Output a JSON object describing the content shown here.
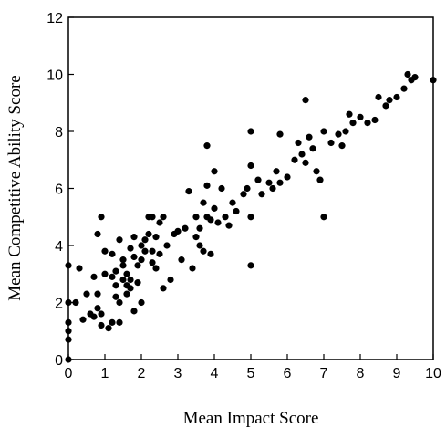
{
  "chart_data": {
    "type": "scatter",
    "xlabel": "Mean Impact Score",
    "ylabel": "Mean Competitive Ability Score",
    "xlim": [
      0,
      10
    ],
    "ylim": [
      0,
      12
    ],
    "xticks": [
      "0",
      "1",
      "2",
      "3",
      "4",
      "5",
      "6",
      "7",
      "8",
      "9",
      "10"
    ],
    "yticks": [
      "0",
      "2",
      "4",
      "6",
      "8",
      "10",
      "12"
    ],
    "grid": false,
    "marker_color": "#000000",
    "points": [
      [
        0.0,
        0.0
      ],
      [
        0.0,
        0.7
      ],
      [
        0.0,
        1.0
      ],
      [
        0.0,
        1.3
      ],
      [
        0.0,
        2.0
      ],
      [
        0.0,
        3.3
      ],
      [
        0.2,
        2.0
      ],
      [
        0.3,
        3.2
      ],
      [
        0.4,
        1.4
      ],
      [
        0.5,
        2.3
      ],
      [
        0.6,
        1.6
      ],
      [
        0.7,
        1.5
      ],
      [
        0.7,
        2.9
      ],
      [
        0.8,
        2.3
      ],
      [
        0.8,
        1.8
      ],
      [
        0.9,
        1.6
      ],
      [
        0.9,
        1.2
      ],
      [
        0.8,
        4.4
      ],
      [
        0.9,
        5.0
      ],
      [
        1.0,
        3.8
      ],
      [
        1.0,
        3.0
      ],
      [
        1.1,
        1.1
      ],
      [
        1.2,
        1.3
      ],
      [
        1.2,
        2.9
      ],
      [
        1.2,
        3.7
      ],
      [
        1.3,
        3.1
      ],
      [
        1.3,
        2.6
      ],
      [
        1.3,
        2.2
      ],
      [
        1.4,
        2.0
      ],
      [
        1.4,
        1.3
      ],
      [
        1.4,
        4.2
      ],
      [
        1.5,
        3.5
      ],
      [
        1.5,
        2.8
      ],
      [
        1.5,
        3.3
      ],
      [
        1.6,
        2.6
      ],
      [
        1.6,
        2.3
      ],
      [
        1.6,
        3.0
      ],
      [
        1.7,
        3.9
      ],
      [
        1.7,
        2.8
      ],
      [
        1.7,
        2.5
      ],
      [
        1.8,
        4.3
      ],
      [
        1.8,
        3.6
      ],
      [
        1.8,
        1.7
      ],
      [
        1.9,
        3.3
      ],
      [
        1.9,
        2.7
      ],
      [
        2.0,
        4.0
      ],
      [
        2.0,
        3.5
      ],
      [
        2.0,
        2.0
      ],
      [
        2.1,
        4.2
      ],
      [
        2.1,
        3.8
      ],
      [
        2.2,
        5.0
      ],
      [
        2.2,
        4.4
      ],
      [
        2.3,
        3.8
      ],
      [
        2.3,
        3.4
      ],
      [
        2.3,
        5.0
      ],
      [
        2.4,
        4.3
      ],
      [
        2.4,
        3.2
      ],
      [
        2.5,
        4.8
      ],
      [
        2.5,
        3.7
      ],
      [
        2.6,
        5.0
      ],
      [
        2.6,
        2.5
      ],
      [
        2.7,
        4.0
      ],
      [
        2.8,
        2.8
      ],
      [
        2.9,
        4.4
      ],
      [
        3.0,
        4.5
      ],
      [
        3.1,
        3.5
      ],
      [
        3.2,
        4.6
      ],
      [
        3.3,
        5.9
      ],
      [
        3.4,
        3.2
      ],
      [
        3.5,
        4.3
      ],
      [
        3.5,
        5.0
      ],
      [
        3.6,
        4.0
      ],
      [
        3.6,
        4.6
      ],
      [
        3.7,
        3.8
      ],
      [
        3.7,
        5.5
      ],
      [
        3.8,
        7.5
      ],
      [
        3.8,
        6.1
      ],
      [
        3.8,
        5.0
      ],
      [
        3.9,
        4.9
      ],
      [
        3.9,
        3.7
      ],
      [
        4.0,
        6.6
      ],
      [
        4.0,
        5.3
      ],
      [
        4.1,
        4.8
      ],
      [
        4.2,
        6.0
      ],
      [
        4.3,
        5.0
      ],
      [
        4.4,
        4.7
      ],
      [
        4.5,
        5.5
      ],
      [
        4.6,
        5.2
      ],
      [
        4.8,
        5.8
      ],
      [
        4.9,
        6.0
      ],
      [
        5.0,
        6.8
      ],
      [
        5.0,
        5.0
      ],
      [
        5.0,
        8.0
      ],
      [
        5.0,
        3.3
      ],
      [
        5.2,
        6.3
      ],
      [
        5.3,
        5.8
      ],
      [
        5.5,
        6.2
      ],
      [
        5.6,
        6.0
      ],
      [
        5.7,
        6.6
      ],
      [
        5.8,
        7.9
      ],
      [
        5.8,
        6.2
      ],
      [
        6.0,
        6.4
      ],
      [
        6.2,
        7.0
      ],
      [
        6.3,
        7.6
      ],
      [
        6.4,
        7.2
      ],
      [
        6.5,
        9.1
      ],
      [
        6.5,
        6.9
      ],
      [
        6.6,
        7.8
      ],
      [
        6.7,
        7.4
      ],
      [
        6.8,
        6.6
      ],
      [
        6.9,
        6.3
      ],
      [
        7.0,
        5.0
      ],
      [
        7.0,
        8.0
      ],
      [
        7.2,
        7.6
      ],
      [
        7.4,
        7.9
      ],
      [
        7.5,
        7.5
      ],
      [
        7.6,
        8.0
      ],
      [
        7.7,
        8.6
      ],
      [
        7.8,
        8.3
      ],
      [
        8.0,
        8.5
      ],
      [
        8.2,
        8.3
      ],
      [
        8.4,
        8.4
      ],
      [
        8.5,
        9.2
      ],
      [
        8.7,
        8.9
      ],
      [
        8.8,
        9.1
      ],
      [
        9.0,
        9.2
      ],
      [
        9.2,
        9.5
      ],
      [
        9.3,
        10.0
      ],
      [
        9.4,
        9.8
      ],
      [
        9.5,
        9.9
      ],
      [
        10.0,
        9.8
      ]
    ]
  }
}
